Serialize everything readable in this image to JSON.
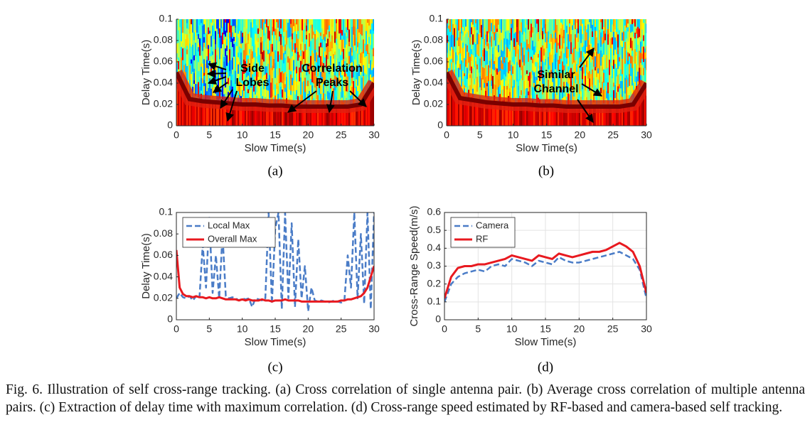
{
  "chart_data": [
    {
      "type": "heatmap",
      "label": "(a)",
      "xlabel": "Slow Time(s)",
      "ylabel": "Delay Time(s)",
      "xlim": [
        0,
        30
      ],
      "ylim": [
        0,
        0.1
      ],
      "xticks": [
        0,
        5,
        10,
        15,
        20,
        25,
        30
      ],
      "yticks": [
        0,
        0.02,
        0.04,
        0.06,
        0.08,
        0.1
      ],
      "x": [
        0,
        2,
        4,
        6,
        8,
        10,
        12,
        14,
        16,
        18,
        20,
        22,
        24,
        26,
        28,
        30
      ],
      "values": [
        0.05,
        0.025,
        0.023,
        0.022,
        0.021,
        0.02,
        0.02,
        0.019,
        0.019,
        0.018,
        0.018,
        0.018,
        0.018,
        0.018,
        0.02,
        0.04
      ],
      "annotations": [
        [
          "Side",
          "Lobes"
        ],
        [
          "Correlation",
          "Peaks"
        ]
      ]
    },
    {
      "type": "heatmap",
      "label": "(b)",
      "xlabel": "Slow Time(s)",
      "ylabel": "Delay Time(s)",
      "xlim": [
        0,
        30
      ],
      "ylim": [
        0,
        0.1
      ],
      "xticks": [
        0,
        5,
        10,
        15,
        20,
        25,
        30
      ],
      "yticks": [
        0,
        0.02,
        0.04,
        0.06,
        0.08,
        0.1
      ],
      "x": [
        0,
        2,
        4,
        6,
        8,
        10,
        12,
        14,
        16,
        18,
        20,
        22,
        24,
        26,
        28,
        30
      ],
      "values": [
        0.05,
        0.026,
        0.024,
        0.022,
        0.021,
        0.02,
        0.02,
        0.019,
        0.019,
        0.018,
        0.018,
        0.018,
        0.018,
        0.018,
        0.02,
        0.04
      ],
      "annotations": [
        [
          "Similar",
          "Channel"
        ]
      ]
    },
    {
      "type": "line",
      "label": "(c)",
      "xlabel": "Slow Time(s)",
      "ylabel": "Delay Time(s)",
      "xlim": [
        0,
        30
      ],
      "ylim": [
        0,
        0.1
      ],
      "xticks": [
        0,
        5,
        10,
        15,
        20,
        25,
        30
      ],
      "yticks": [
        0,
        0.02,
        0.04,
        0.06,
        0.08,
        0.1
      ],
      "grid": false,
      "legend": "upper left",
      "x": [
        0,
        0.5,
        1,
        1.5,
        2,
        2.5,
        3,
        3.5,
        4,
        4.5,
        5,
        5.5,
        6,
        6.5,
        7,
        7.5,
        8,
        8.5,
        9,
        9.5,
        10,
        10.5,
        11,
        11.5,
        12,
        12.5,
        13,
        13.5,
        14,
        14.5,
        15,
        15.5,
        16,
        16.5,
        17,
        17.5,
        18,
        18.5,
        19,
        19.5,
        20,
        20.5,
        21,
        21.5,
        22,
        22.5,
        23,
        23.5,
        24,
        24.5,
        25,
        25.5,
        26,
        26.5,
        27,
        27.5,
        28,
        28.5,
        29,
        29.5,
        30
      ],
      "series": [
        {
          "name": "Local Max",
          "color": "#4a7cc7",
          "linestyle": "dashed",
          "values": [
            0.02,
            0.025,
            0.021,
            0.02,
            0.022,
            0.018,
            0.022,
            0.02,
            0.07,
            0.03,
            0.095,
            0.025,
            0.06,
            0.02,
            0.08,
            0.022,
            0.02,
            0.021,
            0.02,
            0.018,
            0.02,
            0.019,
            0.02,
            0.012,
            0.02,
            0.019,
            0.018,
            0.02,
            0.1,
            0.015,
            0.085,
            0.1,
            0.01,
            0.1,
            0.02,
            0.09,
            0.012,
            0.075,
            0.02,
            0.05,
            0.008,
            0.03,
            0.018,
            0.017,
            0.018,
            0.017,
            0.016,
            0.017,
            0.018,
            0.017,
            0.016,
            0.018,
            0.06,
            0.03,
            0.1,
            0.02,
            0.08,
            0.015,
            0.1,
            0.01,
            0.1
          ]
        },
        {
          "name": "Overall Max",
          "color": "#e8191f",
          "linestyle": "solid",
          "values": [
            0.065,
            0.03,
            0.024,
            0.022,
            0.022,
            0.021,
            0.022,
            0.021,
            0.021,
            0.02,
            0.021,
            0.02,
            0.02,
            0.021,
            0.02,
            0.019,
            0.019,
            0.019,
            0.019,
            0.018,
            0.019,
            0.018,
            0.019,
            0.018,
            0.018,
            0.018,
            0.019,
            0.018,
            0.018,
            0.017,
            0.018,
            0.018,
            0.018,
            0.019,
            0.018,
            0.018,
            0.018,
            0.018,
            0.017,
            0.017,
            0.017,
            0.017,
            0.017,
            0.017,
            0.017,
            0.017,
            0.017,
            0.017,
            0.017,
            0.017,
            0.018,
            0.018,
            0.019,
            0.019,
            0.02,
            0.021,
            0.022,
            0.025,
            0.03,
            0.04,
            0.05
          ]
        }
      ]
    },
    {
      "type": "line",
      "label": "(d)",
      "xlabel": "Slow Time(s)",
      "ylabel": "Cross-Range Speed(m/s)",
      "xlim": [
        0,
        30
      ],
      "ylim": [
        0,
        0.6
      ],
      "xticks": [
        0,
        5,
        10,
        15,
        20,
        25,
        30
      ],
      "yticks": [
        0,
        0.1,
        0.2,
        0.3,
        0.4,
        0.5,
        0.6
      ],
      "grid": true,
      "legend": "upper left",
      "x": [
        0,
        1,
        2,
        3,
        4,
        5,
        6,
        7,
        8,
        9,
        10,
        11,
        12,
        13,
        14,
        15,
        16,
        17,
        18,
        19,
        20,
        21,
        22,
        23,
        24,
        25,
        26,
        27,
        28,
        29,
        30
      ],
      "series": [
        {
          "name": "Camera",
          "color": "#4a7cc7",
          "linestyle": "dashed",
          "values": [
            0.1,
            0.2,
            0.24,
            0.26,
            0.27,
            0.28,
            0.27,
            0.3,
            0.31,
            0.3,
            0.34,
            0.33,
            0.32,
            0.3,
            0.33,
            0.32,
            0.31,
            0.35,
            0.33,
            0.32,
            0.32,
            0.33,
            0.34,
            0.35,
            0.36,
            0.37,
            0.38,
            0.36,
            0.34,
            0.28,
            0.12
          ]
        },
        {
          "name": "RF",
          "color": "#e8191f",
          "linestyle": "solid",
          "values": [
            0.12,
            0.24,
            0.29,
            0.3,
            0.3,
            0.31,
            0.31,
            0.32,
            0.33,
            0.34,
            0.36,
            0.35,
            0.34,
            0.33,
            0.36,
            0.35,
            0.34,
            0.37,
            0.36,
            0.35,
            0.36,
            0.37,
            0.38,
            0.38,
            0.39,
            0.41,
            0.43,
            0.41,
            0.38,
            0.3,
            0.15
          ]
        }
      ]
    }
  ],
  "caption": "Fig. 6.  Illustration of self cross-range tracking. (a) Cross correlation of single antenna pair. (b) Average cross correlation of multiple antenna pairs. (c) Extraction of delay time with maximum correlation. (d) Cross-range speed estimated by RF-based and camera-based self tracking."
}
